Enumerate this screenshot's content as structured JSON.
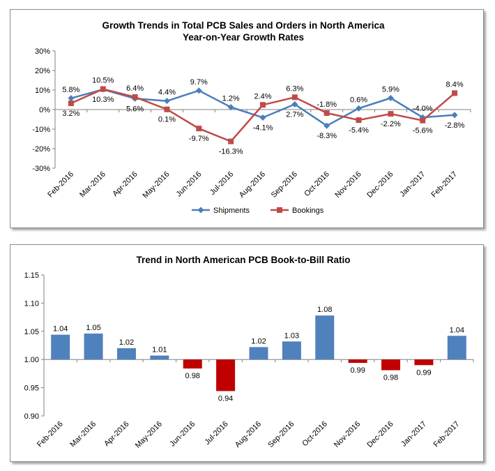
{
  "chart_data": [
    {
      "type": "line",
      "title": "Growth Trends in Total PCB Sales and Orders in North America",
      "subtitle": "Year-on-Year Growth Rates",
      "categories": [
        "Feb-2016",
        "Mar-2016",
        "Apr-2016",
        "May-2016",
        "Jun-2016",
        "Jul-2016",
        "Aug-2016",
        "Sep-2016",
        "Oct-2016",
        "Nov-2016",
        "Dec-2016",
        "Jan-2017",
        "Feb-2017"
      ],
      "y_ticks": [
        "30%",
        "20%",
        "10%",
        "0%",
        "-10%",
        "-20%",
        "-30%"
      ],
      "ylim": [
        -30,
        30
      ],
      "grid": false,
      "legend_position": "bottom",
      "series": [
        {
          "name": "Shipments",
          "color": "#4a7ebb",
          "marker": "diamond",
          "values": [
            5.8,
            10.3,
            5.6,
            4.4,
            9.7,
            1.2,
            -4.1,
            2.7,
            -8.3,
            0.6,
            5.9,
            -4.0,
            -2.8
          ],
          "labels": [
            "5.8%",
            "10.3%",
            "5.6%",
            "4.4%",
            "9.7%",
            "1.2%",
            "-4.1%",
            "2.7%",
            "-8.3%",
            "0.6%",
            "5.9%",
            "-4.0%",
            "-2.8%"
          ]
        },
        {
          "name": "Bookings",
          "color": "#be4b48",
          "marker": "square",
          "values": [
            3.2,
            10.5,
            6.4,
            0.1,
            -9.7,
            -16.3,
            2.4,
            6.3,
            -1.8,
            -5.4,
            -2.2,
            -5.6,
            8.4
          ],
          "labels": [
            "3.2%",
            "10.5%",
            "6.4%",
            "0.1%",
            "-9.7%",
            "-16.3%",
            "2.4%",
            "6.3%",
            "-1.8%",
            "-5.4%",
            "-2.2%",
            "-5.6%",
            "8.4%"
          ]
        }
      ]
    },
    {
      "type": "bar",
      "title": "Trend in North American PCB Book-to-Bill Ratio",
      "categories": [
        "Feb-2016",
        "Mar-2016",
        "Apr-2016",
        "May-2016",
        "Jun-2016",
        "Jul-2016",
        "Aug-2016",
        "Sep-2016",
        "Oct-2016",
        "Nov-2016",
        "Dec-2016",
        "Jan-2017",
        "Feb-2017"
      ],
      "values": [
        1.04,
        1.05,
        1.02,
        1.01,
        0.98,
        0.94,
        1.02,
        1.03,
        1.08,
        0.99,
        0.98,
        0.99,
        1.04
      ],
      "plot_values": [
        1.044,
        1.046,
        1.02,
        1.007,
        0.984,
        0.944,
        1.022,
        1.032,
        1.078,
        0.994,
        0.981,
        0.99,
        1.042
      ],
      "labels": [
        "1.04",
        "1.05",
        "1.02",
        "1.01",
        "0.98",
        "0.94",
        "1.02",
        "1.03",
        "1.08",
        "0.99",
        "0.98",
        "0.99",
        "1.04"
      ],
      "y_ticks": [
        "1.15",
        "1.10",
        "1.05",
        "1.00",
        "0.95",
        "0.90"
      ],
      "ylim": [
        0.9,
        1.15
      ],
      "baseline": 1.0,
      "grid": false,
      "colors": {
        "above": "#4f81bd",
        "below": "#c00000"
      }
    }
  ]
}
